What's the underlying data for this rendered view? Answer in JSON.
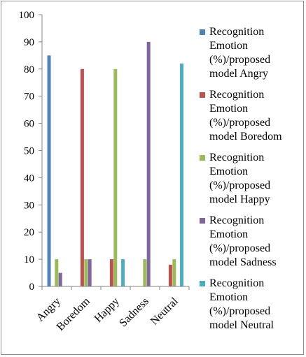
{
  "chart_data": {
    "type": "bar",
    "categories": [
      "Angry",
      "Boredom",
      "Happy",
      "Sadness",
      "Neutral"
    ],
    "ylim": [
      0,
      100
    ],
    "yticks": [
      0,
      10,
      20,
      30,
      40,
      50,
      60,
      70,
      80,
      90,
      100
    ],
    "grid": false,
    "legend_position": "right",
    "title": "",
    "xlabel": "",
    "ylabel": "",
    "series": [
      {
        "name": "Recognition Emotion (%)/proposed model Angry",
        "color": "#4F81BD",
        "values": [
          85,
          0,
          0,
          0,
          0
        ]
      },
      {
        "name": "Recognition Emotion (%)/proposed model Boredom",
        "color": "#C0504D",
        "values": [
          0,
          80,
          10,
          0,
          8
        ]
      },
      {
        "name": "Recognition Emotion (%)/proposed model Happy",
        "color": "#9BBB59",
        "values": [
          10,
          10,
          80,
          10,
          10
        ]
      },
      {
        "name": "Recognition Emotion (%)/proposed model Sadness",
        "color": "#8064A2",
        "values": [
          5,
          10,
          0,
          90,
          0
        ]
      },
      {
        "name": "Recognition Emotion (%)/proposed model Neutral",
        "color": "#4BACC6",
        "values": [
          0,
          0,
          10,
          0,
          82
        ]
      }
    ]
  }
}
